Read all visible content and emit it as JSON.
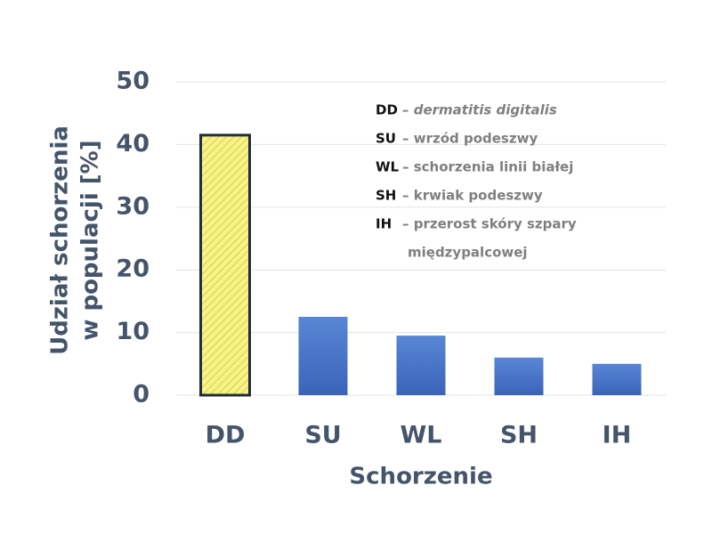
{
  "chart_data": {
    "type": "bar",
    "categories": [
      "DD",
      "SU",
      "WL",
      "SH",
      "IH"
    ],
    "values": [
      41.5,
      12.5,
      9.5,
      6,
      5
    ],
    "colors": [
      "#f7f28a",
      "#4472c4",
      "#4472c4",
      "#4472c4",
      "#4472c4"
    ],
    "borders": [
      "#1f2d3d",
      null,
      null,
      null,
      null
    ],
    "ylim": [
      0,
      50
    ],
    "yticks": [
      0,
      10,
      20,
      30,
      40,
      50
    ],
    "grid": true,
    "ylabel": [
      "Udział schorzenia",
      "w populacji [%]"
    ],
    "xlabel": "Schorzenie",
    "annotations": [
      {
        "code": "DD",
        "text": [
          "– dermatitis digitalis"
        ]
      },
      {
        "code": "SU",
        "text": [
          "– wrzód podeszwy"
        ]
      },
      {
        "code": "WL",
        "text": [
          "– schorzenia linii białej"
        ]
      },
      {
        "code": "SH",
        "text": [
          "– krwiak podeszwy"
        ]
      },
      {
        "code": "IH",
        "text": [
          "– przerost skóry szpary",
          "międzypalcowej"
        ]
      }
    ]
  }
}
